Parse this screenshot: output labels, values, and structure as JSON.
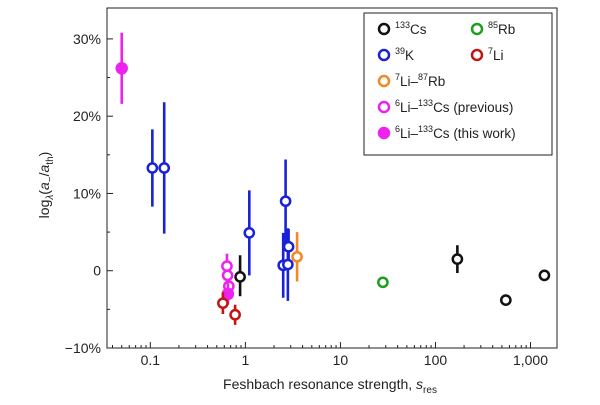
{
  "chart_data": {
    "type": "scatter",
    "title": "",
    "xscale": "log",
    "xlim": [
      0.035,
      1900
    ],
    "ylim": [
      -10,
      34
    ],
    "xticks": [
      {
        "value": 0.1,
        "label": "0.1"
      },
      {
        "value": 1,
        "label": "1"
      },
      {
        "value": 10,
        "label": "10"
      },
      {
        "value": 100,
        "label": "100"
      },
      {
        "value": 1000,
        "label": "1,000"
      }
    ],
    "yticks": [
      {
        "value": -10,
        "label": "−10%"
      },
      {
        "value": 0,
        "label": "0"
      },
      {
        "value": 10,
        "label": "10%"
      },
      {
        "value": 20,
        "label": "20%"
      },
      {
        "value": 30,
        "label": "30%"
      }
    ],
    "xlabel": {
      "main": "Feshbach resonance strength, ",
      "var": "s",
      "sub": "res"
    },
    "ylabel": {
      "log": "log",
      "base": "λ",
      "open": "(",
      "a": "a",
      "sub_minus": "−",
      "slash": "/",
      "a2": "a",
      "sub_th": "th",
      "close": ")"
    },
    "grid": false,
    "legend": {
      "position": "top-right",
      "columns": 2
    },
    "series": [
      {
        "name": "133Cs",
        "label": {
          "sup": "133",
          "text": "Cs"
        },
        "color": "#111111",
        "marker": "open-circle",
        "points": [
          {
            "x": 0.88,
            "y": -0.8,
            "err_low": 2.5,
            "err_high": 2.8
          },
          {
            "x": 170,
            "y": 1.5,
            "err_low": 1.8,
            "err_high": 1.8
          },
          {
            "x": 550,
            "y": -3.8,
            "err_low": 0.5,
            "err_high": 0.5
          },
          {
            "x": 1400,
            "y": -0.6,
            "err_low": 0.5,
            "err_high": 0.5
          }
        ]
      },
      {
        "name": "39K",
        "label": {
          "sup": "39",
          "text": "K"
        },
        "color": "#1a22d6",
        "marker": "open-circle",
        "points": [
          {
            "x": 0.105,
            "y": 13.3,
            "err_low": 5.0,
            "err_high": 5.0
          },
          {
            "x": 0.14,
            "y": 13.3,
            "err_low": 8.5,
            "err_high": 8.5
          },
          {
            "x": 1.1,
            "y": 4.9,
            "err_low": 5.5,
            "err_high": 5.5
          },
          {
            "x": 2.5,
            "y": 0.7,
            "err_low": 4.2,
            "err_high": 4.2
          },
          {
            "x": 2.65,
            "y": 9.0,
            "err_low": 5.4,
            "err_high": 5.4
          },
          {
            "x": 2.8,
            "y": 0.8,
            "err_low": 4.7,
            "err_high": 4.7
          },
          {
            "x": 2.85,
            "y": 3.1,
            "err_low": 2.3,
            "err_high": 2.3
          }
        ]
      },
      {
        "name": "7Li-87Rb",
        "label": {
          "sup1": "7",
          "text1": "Li–",
          "sup2": "87",
          "text2": "Rb"
        },
        "color": "#f08a24",
        "marker": "open-circle",
        "points": [
          {
            "x": 3.5,
            "y": 1.8,
            "err_low": 3.2,
            "err_high": 3.2
          }
        ]
      },
      {
        "name": "6Li-133Cs (previous)",
        "label": {
          "sup1": "6",
          "text1": "Li–",
          "sup2": "133",
          "text2": "Cs (previous)"
        },
        "color": "#ee22ee",
        "marker": "open-circle",
        "points": [
          {
            "x": 0.64,
            "y": 0.6,
            "err_low": 1.6,
            "err_high": 1.6
          },
          {
            "x": 0.65,
            "y": -0.6,
            "err_low": 1.5,
            "err_high": 1.5
          },
          {
            "x": 0.67,
            "y": -2.0,
            "err_low": 1.5,
            "err_high": 1.5
          }
        ]
      },
      {
        "name": "6Li-133Cs (this work)",
        "label": {
          "sup1": "6",
          "text1": "Li–",
          "sup2": "133",
          "text2": "Cs (this work)"
        },
        "color": "#ee22ee",
        "marker": "filled-circle",
        "points": [
          {
            "x": 0.05,
            "y": 26.2,
            "err_low": 4.6,
            "err_high": 4.6
          },
          {
            "x": 0.655,
            "y": -3.0,
            "err_low": 1.4,
            "err_high": 1.4
          }
        ]
      },
      {
        "name": "85Rb",
        "label": {
          "sup": "85",
          "text": "Rb"
        },
        "color": "#1f9e1f",
        "marker": "open-circle",
        "points": [
          {
            "x": 28,
            "y": -1.5,
            "err_low": 0.4,
            "err_high": 0.4
          }
        ]
      },
      {
        "name": "7Li",
        "label": {
          "sup": "7",
          "text": "Li"
        },
        "color": "#c41414",
        "marker": "open-circle",
        "points": [
          {
            "x": 0.58,
            "y": -4.2,
            "err_low": 1.4,
            "err_high": 1.4
          },
          {
            "x": 0.78,
            "y": -5.7,
            "err_low": 1.3,
            "err_high": 1.3
          }
        ]
      }
    ]
  }
}
